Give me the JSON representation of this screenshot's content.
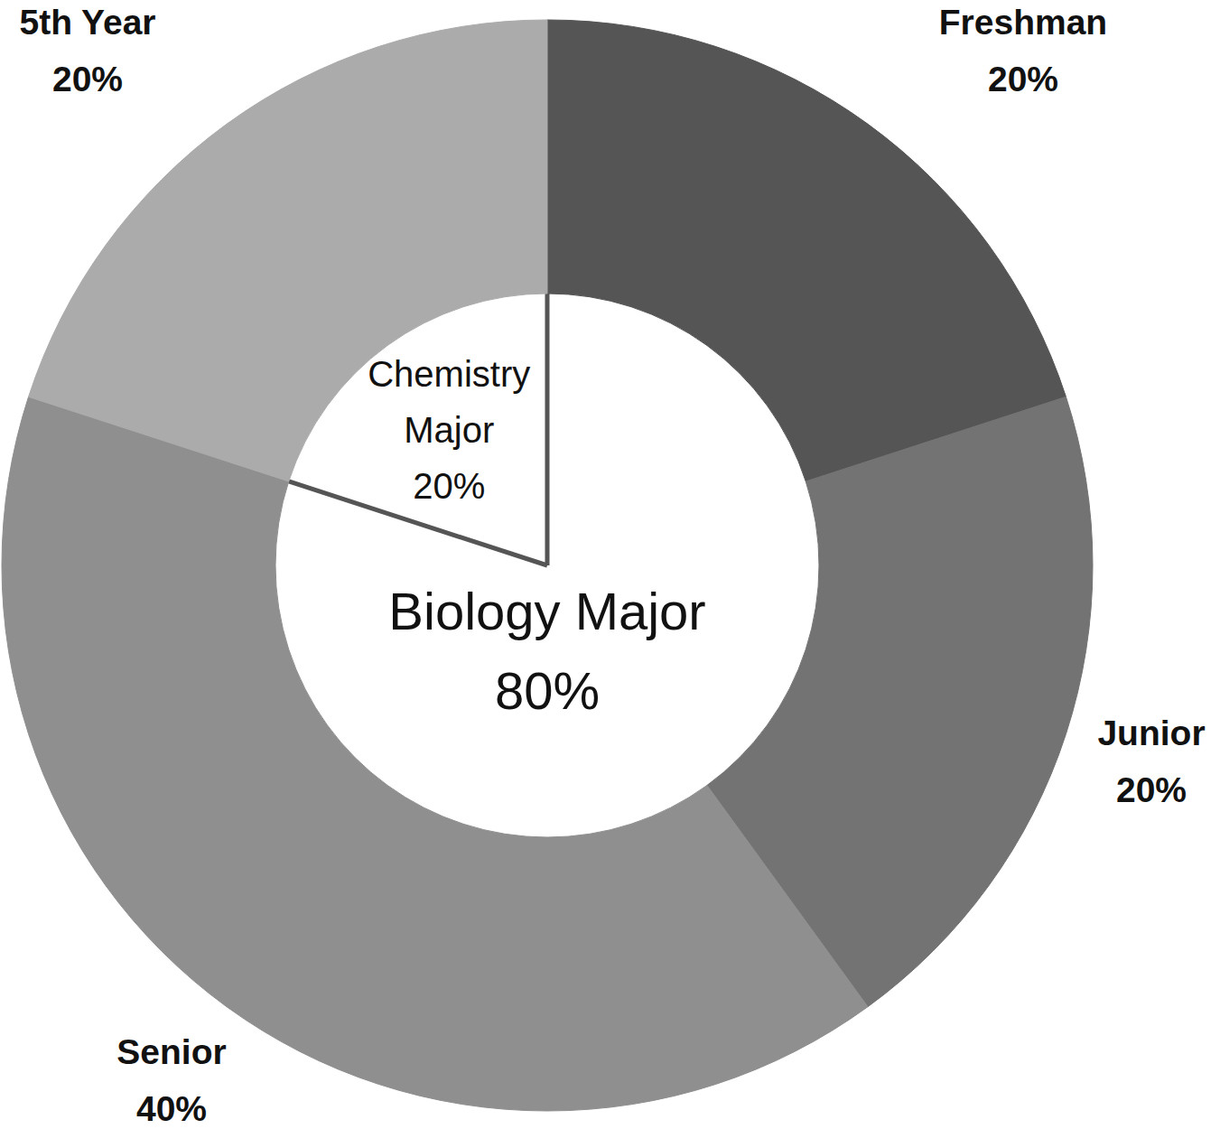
{
  "chart_data": [
    {
      "type": "pie",
      "categories": [
        "Biology Major",
        "Chemistry Major"
      ],
      "values": [
        80,
        20
      ],
      "value_labels": [
        "80%",
        "20%"
      ],
      "colors": [
        "#ffffff",
        "#ffffff"
      ],
      "data_labels": true
    },
    {
      "type": "pie",
      "categories": [
        "Freshman",
        "Junior",
        "Senior",
        "5th Year"
      ],
      "values": [
        20,
        20,
        40,
        20
      ],
      "value_labels": [
        "20%",
        "20%",
        "40%",
        "20%"
      ],
      "colors": [
        "#555555",
        "#737373",
        "#8f8f8f",
        "#ababab"
      ],
      "data_labels": true
    }
  ]
}
